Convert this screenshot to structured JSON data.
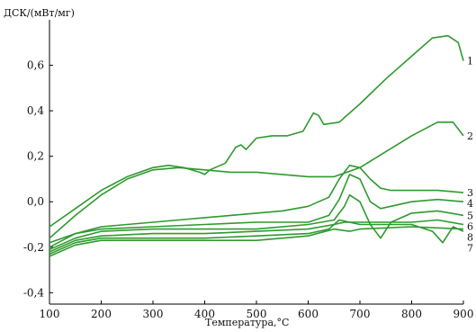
{
  "chart_data": {
    "type": "line",
    "title": "",
    "ylabel": "ДСК/(мВт/мг)",
    "xlabel": "Температура,°C",
    "xlim": [
      100,
      900
    ],
    "ylim": [
      -0.45,
      0.8
    ],
    "x_ticks": [
      "100",
      "200",
      "300",
      "400",
      "500",
      "600",
      "700",
      "800",
      "900"
    ],
    "y_ticks": [
      "0,6",
      "0,4",
      "0,2",
      "0,0",
      "-0,2",
      "-0,4"
    ],
    "grid": false,
    "line_color": "#2e9a2e",
    "series": [
      {
        "name": "1",
        "points": [
          [
            100,
            -0.11
          ],
          [
            150,
            -0.03
          ],
          [
            200,
            0.05
          ],
          [
            250,
            0.11
          ],
          [
            300,
            0.15
          ],
          [
            330,
            0.16
          ],
          [
            360,
            0.15
          ],
          [
            390,
            0.13
          ],
          [
            400,
            0.12
          ],
          [
            410,
            0.14
          ],
          [
            440,
            0.17
          ],
          [
            460,
            0.24
          ],
          [
            470,
            0.25
          ],
          [
            480,
            0.23
          ],
          [
            500,
            0.28
          ],
          [
            530,
            0.29
          ],
          [
            560,
            0.29
          ],
          [
            590,
            0.31
          ],
          [
            610,
            0.39
          ],
          [
            620,
            0.38
          ],
          [
            630,
            0.34
          ],
          [
            660,
            0.35
          ],
          [
            700,
            0.43
          ],
          [
            750,
            0.54
          ],
          [
            800,
            0.64
          ],
          [
            840,
            0.72
          ],
          [
            870,
            0.73
          ],
          [
            890,
            0.7
          ],
          [
            900,
            0.62
          ]
        ]
      },
      {
        "name": "2",
        "points": [
          [
            100,
            -0.16
          ],
          [
            150,
            -0.06
          ],
          [
            200,
            0.03
          ],
          [
            250,
            0.1
          ],
          [
            300,
            0.14
          ],
          [
            350,
            0.15
          ],
          [
            400,
            0.14
          ],
          [
            450,
            0.13
          ],
          [
            500,
            0.13
          ],
          [
            550,
            0.12
          ],
          [
            600,
            0.11
          ],
          [
            650,
            0.11
          ],
          [
            700,
            0.15
          ],
          [
            750,
            0.22
          ],
          [
            800,
            0.29
          ],
          [
            850,
            0.35
          ],
          [
            880,
            0.35
          ],
          [
            900,
            0.29
          ]
        ]
      },
      {
        "name": "3",
        "points": [
          [
            100,
            -0.18
          ],
          [
            150,
            -0.14
          ],
          [
            200,
            -0.11
          ],
          [
            250,
            -0.1
          ],
          [
            300,
            -0.09
          ],
          [
            350,
            -0.08
          ],
          [
            400,
            -0.07
          ],
          [
            450,
            -0.06
          ],
          [
            500,
            -0.05
          ],
          [
            550,
            -0.04
          ],
          [
            600,
            -0.02
          ],
          [
            640,
            0.02
          ],
          [
            660,
            0.1
          ],
          [
            680,
            0.16
          ],
          [
            700,
            0.15
          ],
          [
            720,
            0.1
          ],
          [
            740,
            0.06
          ],
          [
            760,
            0.05
          ],
          [
            800,
            0.05
          ],
          [
            850,
            0.05
          ],
          [
            900,
            0.04
          ]
        ]
      },
      {
        "name": "4",
        "points": [
          [
            100,
            -0.2
          ],
          [
            150,
            -0.14
          ],
          [
            200,
            -0.12
          ],
          [
            300,
            -0.11
          ],
          [
            400,
            -0.1
          ],
          [
            500,
            -0.09
          ],
          [
            600,
            -0.09
          ],
          [
            640,
            -0.06
          ],
          [
            660,
            0.01
          ],
          [
            680,
            0.12
          ],
          [
            700,
            0.1
          ],
          [
            720,
            0.0
          ],
          [
            740,
            -0.03
          ],
          [
            800,
            0.0
          ],
          [
            850,
            0.01
          ],
          [
            900,
            0.0
          ]
        ]
      },
      {
        "name": "5",
        "points": [
          [
            100,
            -0.21
          ],
          [
            150,
            -0.16
          ],
          [
            200,
            -0.13
          ],
          [
            300,
            -0.12
          ],
          [
            400,
            -0.12
          ],
          [
            500,
            -0.12
          ],
          [
            600,
            -0.1
          ],
          [
            650,
            -0.08
          ],
          [
            670,
            -0.02
          ],
          [
            680,
            0.03
          ],
          [
            700,
            0.0
          ],
          [
            720,
            -0.1
          ],
          [
            740,
            -0.16
          ],
          [
            760,
            -0.09
          ],
          [
            800,
            -0.05
          ],
          [
            850,
            -0.04
          ],
          [
            900,
            -0.06
          ]
        ]
      },
      {
        "name": "6",
        "points": [
          [
            100,
            -0.22
          ],
          [
            150,
            -0.17
          ],
          [
            200,
            -0.15
          ],
          [
            300,
            -0.14
          ],
          [
            400,
            -0.14
          ],
          [
            500,
            -0.13
          ],
          [
            600,
            -0.12
          ],
          [
            650,
            -0.1
          ],
          [
            670,
            -0.09
          ],
          [
            700,
            -0.09
          ],
          [
            800,
            -0.09
          ],
          [
            850,
            -0.08
          ],
          [
            900,
            -0.1
          ]
        ]
      },
      {
        "name": "7",
        "points": [
          [
            100,
            -0.23
          ],
          [
            150,
            -0.18
          ],
          [
            200,
            -0.16
          ],
          [
            300,
            -0.16
          ],
          [
            400,
            -0.16
          ],
          [
            500,
            -0.15
          ],
          [
            600,
            -0.14
          ],
          [
            640,
            -0.12
          ],
          [
            660,
            -0.08
          ],
          [
            680,
            -0.09
          ],
          [
            700,
            -0.1
          ],
          [
            800,
            -0.1
          ],
          [
            840,
            -0.13
          ],
          [
            860,
            -0.18
          ],
          [
            880,
            -0.11
          ],
          [
            900,
            -0.13
          ]
        ]
      },
      {
        "name": "8",
        "points": [
          [
            100,
            -0.24
          ],
          [
            150,
            -0.19
          ],
          [
            200,
            -0.17
          ],
          [
            300,
            -0.17
          ],
          [
            400,
            -0.17
          ],
          [
            500,
            -0.17
          ],
          [
            600,
            -0.15
          ],
          [
            650,
            -0.12
          ],
          [
            680,
            -0.13
          ],
          [
            700,
            -0.12
          ],
          [
            800,
            -0.11
          ],
          [
            900,
            -0.12
          ]
        ]
      }
    ]
  }
}
